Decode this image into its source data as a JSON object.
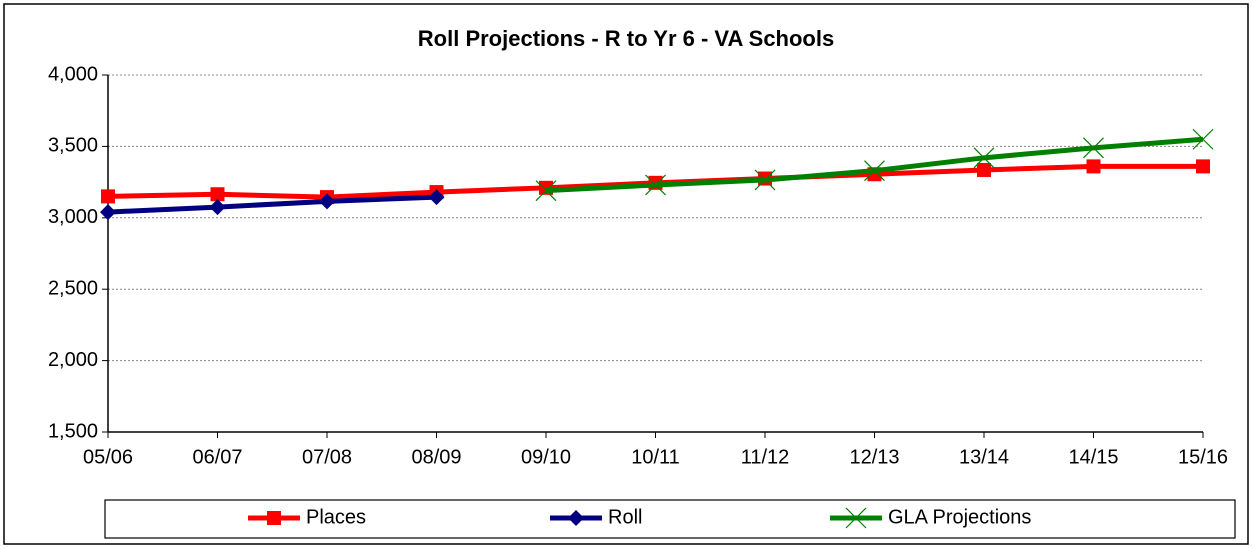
{
  "chart_data": {
    "type": "line",
    "title": "Roll Projections - R to Yr 6 - VA Schools",
    "categories": [
      "05/06",
      "06/07",
      "07/08",
      "08/09",
      "09/10",
      "10/11",
      "11/12",
      "12/13",
      "13/14",
      "14/15",
      "15/16"
    ],
    "series": [
      {
        "name": "Places",
        "color": "#ff0000",
        "marker": "square",
        "values": [
          3150,
          3165,
          3145,
          3180,
          3210,
          3245,
          3275,
          3305,
          3335,
          3360,
          3360
        ]
      },
      {
        "name": "Roll",
        "color": "#000080",
        "marker": "diamond",
        "values": [
          3040,
          3075,
          3115,
          3145,
          null,
          null,
          null,
          null,
          null,
          null,
          null
        ]
      },
      {
        "name": "GLA Projections",
        "color": "#008000",
        "marker": "x",
        "values": [
          null,
          null,
          null,
          null,
          3190,
          3230,
          3265,
          3330,
          3420,
          3490,
          3550
        ]
      }
    ],
    "ylim": [
      1500,
      4000
    ],
    "yticks": [
      {
        "value": 1500,
        "label": "1,500"
      },
      {
        "value": 2000,
        "label": "2,000"
      },
      {
        "value": 2500,
        "label": "2,500"
      },
      {
        "value": 3000,
        "label": "3,000"
      },
      {
        "value": 3500,
        "label": "3,500"
      },
      {
        "value": 4000,
        "label": "4,000"
      }
    ],
    "grid": true,
    "legend": "bottom"
  }
}
